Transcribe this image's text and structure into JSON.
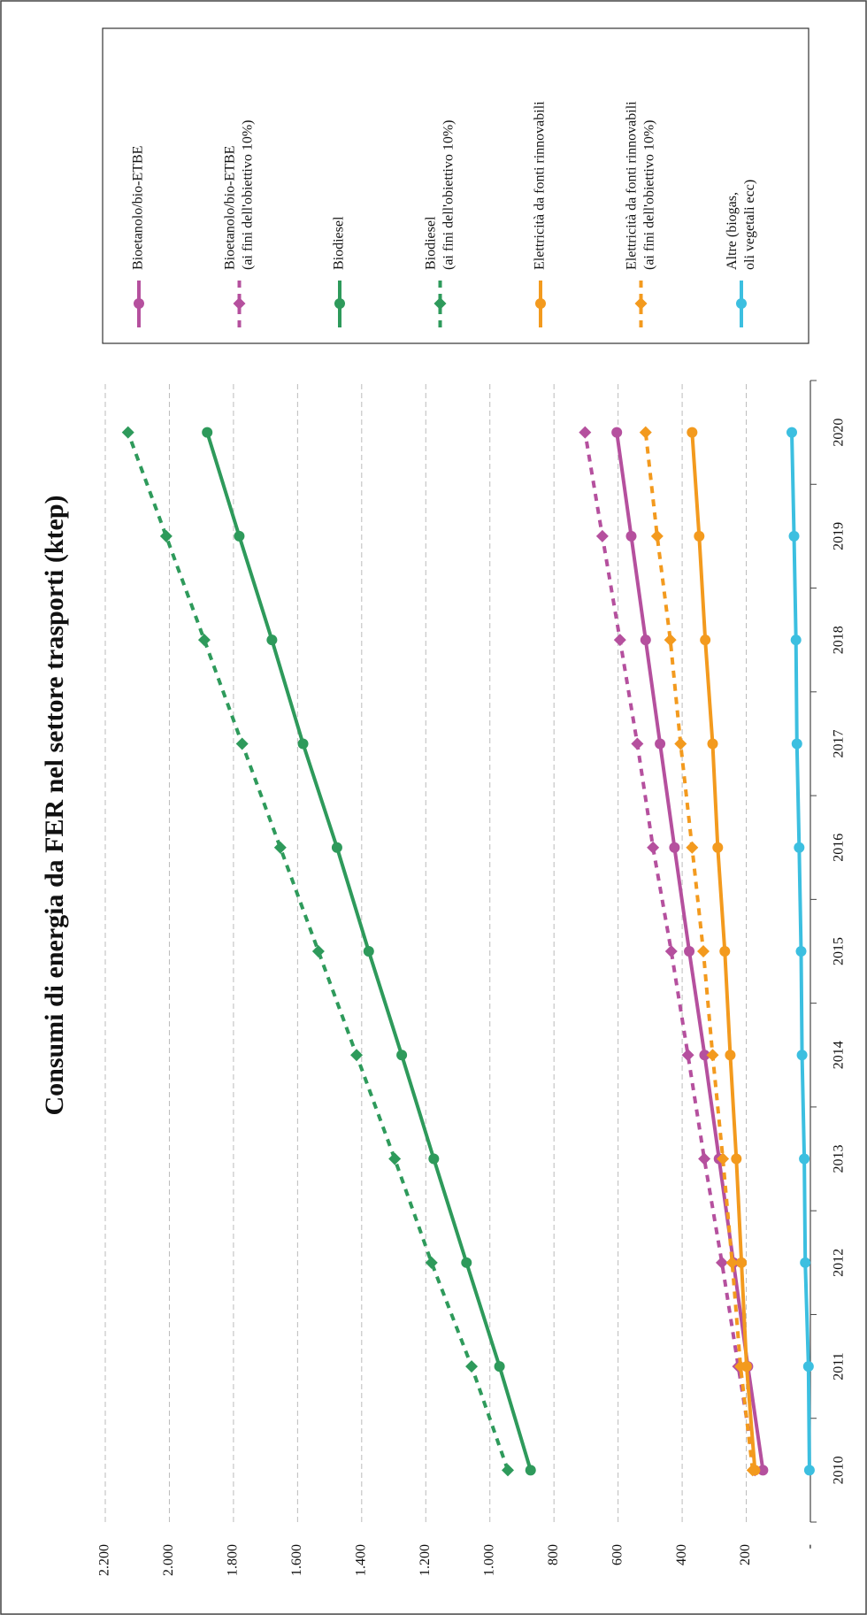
{
  "chart_data": {
    "type": "line",
    "title": "Consumi di energia da FER nel settore trasporti (ktep)",
    "categories": [
      "2010",
      "2011",
      "2012",
      "2013",
      "2014",
      "2015",
      "2016",
      "2017",
      "2018",
      "2019",
      "2020"
    ],
    "ylim": [
      0,
      2200
    ],
    "yticks": [
      {
        "value": 0,
        "label": "-"
      },
      200,
      400,
      600,
      800,
      {
        "value": 1000,
        "label": "1.000"
      },
      {
        "value": 1200,
        "label": "1.200"
      },
      {
        "value": 1400,
        "label": "1.400"
      },
      {
        "value": 1600,
        "label": "1.600"
      },
      {
        "value": 1800,
        "label": "1.800"
      },
      {
        "value": 2000,
        "label": "2.000"
      },
      {
        "value": 2200,
        "label": "2.200"
      }
    ],
    "grid": true,
    "legend": "right",
    "series": [
      {
        "name": "Bioetanolo/bio-ETBE",
        "color": "#b5509e",
        "dash": false,
        "marker": "circle",
        "values": [
          148,
          195,
          240,
          285,
          330,
          378,
          424,
          469,
          514,
          559,
          604
        ]
      },
      {
        "name": "Bioetanolo/bio-ETBE\n(ai fini dell'obiettivo 10%)",
        "color": "#b5509e",
        "dash": true,
        "marker": "diamond",
        "values": [
          173,
          225,
          276,
          331,
          382,
          434,
          491,
          540,
          594,
          649,
          703
        ]
      },
      {
        "name": "Biodiesel",
        "color": "#2e9a5b",
        "dash": false,
        "marker": "circle",
        "values": [
          873,
          970,
          1073,
          1175,
          1275,
          1378,
          1477,
          1583,
          1680,
          1782,
          1882
        ]
      },
      {
        "name": "Biodiesel\n(ai fini dell'obiettivo 10%)",
        "color": "#2e9a5b",
        "dash": true,
        "marker": "diamond",
        "values": [
          944,
          1057,
          1182,
          1297,
          1416,
          1535,
          1654,
          1773,
          1891,
          2010,
          2129
        ]
      },
      {
        "name": "Elettricità da fonti rinnovabili",
        "color": "#f39a1e",
        "dash": false,
        "marker": "circle",
        "values": [
          173,
          199,
          215,
          231,
          250,
          267,
          289,
          305,
          328,
          347,
          369
        ]
      },
      {
        "name": "Elettricità da fonti rinnovabili\n(ai fini dell'obiettivo 10%)",
        "color": "#f39a1e",
        "dash": true,
        "marker": "diamond",
        "values": [
          180,
          218,
          244,
          273,
          305,
          334,
          369,
          405,
          437,
          478,
          514
        ]
      },
      {
        "name": "Altre (biogas,\noli vegetali ecc)",
        "color": "#3cbfe0",
        "dash": false,
        "marker": "circle",
        "values": [
          3,
          6,
          16,
          19,
          26,
          29,
          35,
          42,
          45,
          51,
          58
        ]
      }
    ]
  }
}
